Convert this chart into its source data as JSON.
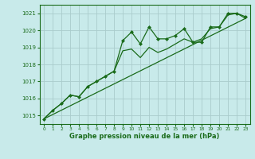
{
  "background_color": "#c8eaea",
  "grid_color": "#aacccc",
  "line_color": "#1a6b1a",
  "marker_color": "#1a6b1a",
  "text_color": "#1a6b1a",
  "xlabel": "Graphe pression niveau de la mer (hPa)",
  "ylim": [
    1014.5,
    1021.5
  ],
  "xlim": [
    -0.5,
    23.5
  ],
  "yticks": [
    1015,
    1016,
    1017,
    1018,
    1019,
    1020,
    1021
  ],
  "xticks": [
    0,
    1,
    2,
    3,
    4,
    5,
    6,
    7,
    8,
    9,
    10,
    11,
    12,
    13,
    14,
    15,
    16,
    17,
    18,
    19,
    20,
    21,
    22,
    23
  ],
  "series1_x": [
    0,
    1,
    2,
    3,
    4,
    5,
    6,
    7,
    8,
    9,
    10,
    11,
    12,
    13,
    14,
    15,
    16,
    17,
    18,
    19,
    20,
    21,
    22,
    23
  ],
  "series1_y": [
    1014.8,
    1015.3,
    1015.7,
    1016.2,
    1016.1,
    1016.7,
    1017.0,
    1017.3,
    1017.6,
    1019.4,
    1019.9,
    1019.2,
    1020.2,
    1019.5,
    1019.5,
    1019.7,
    1020.1,
    1019.3,
    1019.3,
    1020.2,
    1020.2,
    1021.0,
    1021.0,
    1020.8
  ],
  "series2_x": [
    0,
    1,
    2,
    3,
    4,
    5,
    6,
    7,
    8,
    9,
    10,
    11,
    12,
    13,
    14,
    15,
    16,
    17,
    18,
    19,
    20,
    21,
    22,
    23
  ],
  "series2_y": [
    1014.8,
    1015.3,
    1015.7,
    1016.2,
    1016.1,
    1016.7,
    1017.0,
    1017.3,
    1017.6,
    1018.8,
    1018.9,
    1018.4,
    1019.0,
    1018.7,
    1018.9,
    1019.2,
    1019.5,
    1019.3,
    1019.5,
    1020.1,
    1020.2,
    1020.9,
    1021.0,
    1020.7
  ],
  "series3_x": [
    0,
    23
  ],
  "series3_y": [
    1014.8,
    1020.7
  ]
}
